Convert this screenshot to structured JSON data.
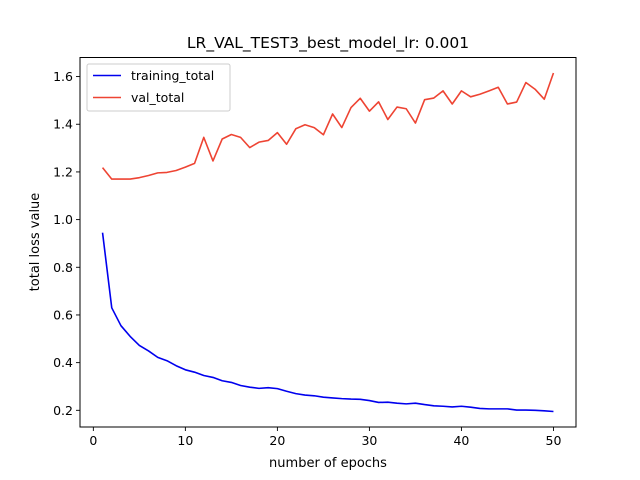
{
  "chart_data": {
    "type": "line",
    "title": "LR_VAL_TEST3_best_model_lr: 0.001",
    "xlabel": "number of epochs",
    "ylabel": "total loss value",
    "xlim": [
      -1.45,
      52.45
    ],
    "ylim": [
      0.13,
      1.68
    ],
    "xticks": [
      0,
      10,
      20,
      30,
      40,
      50
    ],
    "xtick_labels": [
      "0",
      "10",
      "20",
      "30",
      "40",
      "50"
    ],
    "yticks": [
      0.2,
      0.4,
      0.6,
      0.8,
      1.0,
      1.2,
      1.4,
      1.6
    ],
    "ytick_labels": [
      "0.2",
      "0.4",
      "0.6",
      "0.8",
      "1.0",
      "1.2",
      "1.4",
      "1.6"
    ],
    "grid": false,
    "legend_position": "upper-left",
    "x": [
      1,
      2,
      3,
      4,
      5,
      6,
      7,
      8,
      9,
      10,
      11,
      12,
      13,
      14,
      15,
      16,
      17,
      18,
      19,
      20,
      21,
      22,
      23,
      24,
      25,
      26,
      27,
      28,
      29,
      30,
      31,
      32,
      33,
      34,
      35,
      36,
      37,
      38,
      39,
      40,
      41,
      42,
      43,
      44,
      45,
      46,
      47,
      48,
      49,
      50
    ],
    "series": [
      {
        "name": "training_total",
        "color": "#0000ee",
        "values": [
          0.945,
          0.63,
          0.555,
          0.51,
          0.472,
          0.449,
          0.422,
          0.408,
          0.387,
          0.37,
          0.36,
          0.346,
          0.338,
          0.324,
          0.317,
          0.304,
          0.297,
          0.292,
          0.295,
          0.291,
          0.28,
          0.27,
          0.264,
          0.261,
          0.255,
          0.252,
          0.249,
          0.247,
          0.246,
          0.241,
          0.233,
          0.234,
          0.23,
          0.227,
          0.23,
          0.224,
          0.219,
          0.217,
          0.214,
          0.217,
          0.213,
          0.208,
          0.206,
          0.206,
          0.206,
          0.201,
          0.201,
          0.2,
          0.198,
          0.195
        ]
      },
      {
        "name": "val_total",
        "color": "#ee4433",
        "values": [
          1.218,
          1.17,
          1.17,
          1.17,
          1.176,
          1.185,
          1.196,
          1.198,
          1.206,
          1.22,
          1.236,
          1.345,
          1.246,
          1.338,
          1.357,
          1.345,
          1.302,
          1.325,
          1.332,
          1.365,
          1.316,
          1.381,
          1.398,
          1.386,
          1.356,
          1.443,
          1.386,
          1.47,
          1.509,
          1.455,
          1.494,
          1.42,
          1.472,
          1.465,
          1.405,
          1.503,
          1.51,
          1.54,
          1.485,
          1.54,
          1.515,
          1.526,
          1.54,
          1.555,
          1.485,
          1.493,
          1.575,
          1.547,
          1.505,
          1.615
        ]
      }
    ]
  }
}
